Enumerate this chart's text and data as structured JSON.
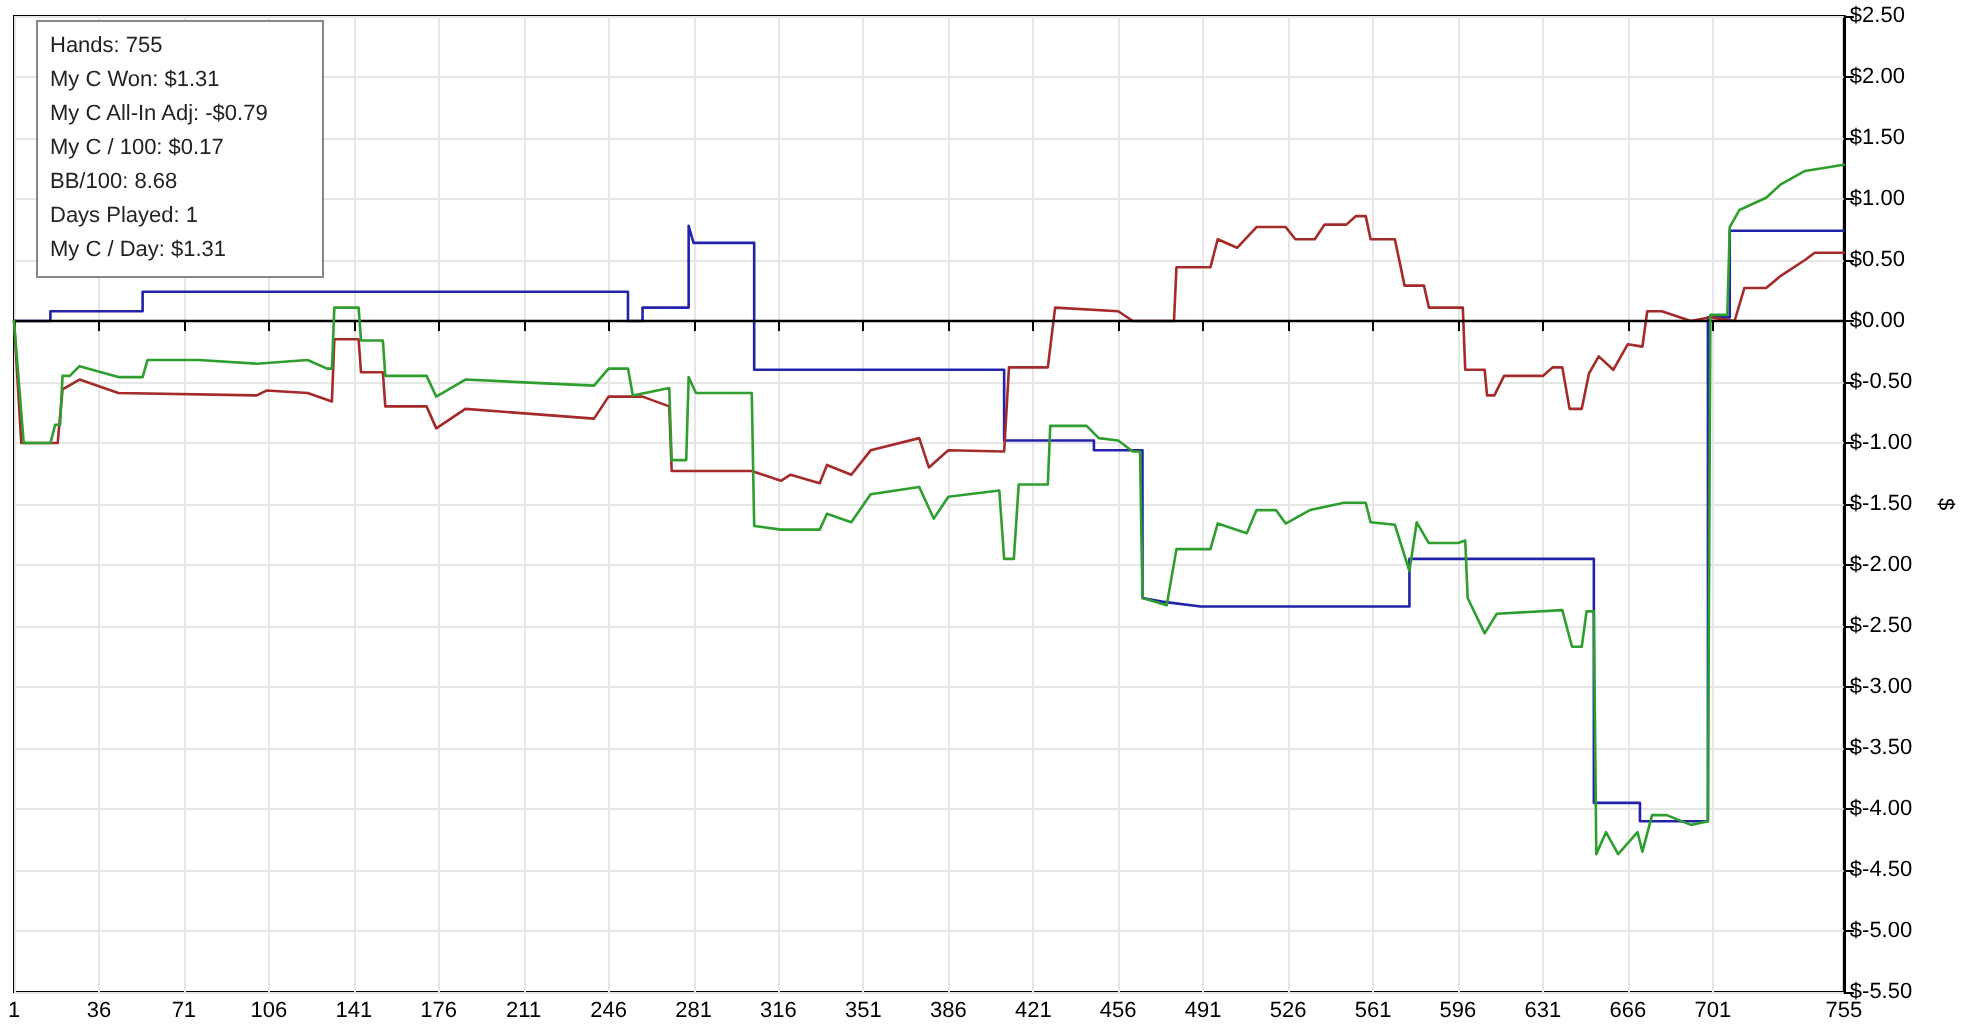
{
  "chart_data": {
    "type": "line",
    "ylabel": "$",
    "annotations": [
      "Hands: 755",
      "My C Won: $1.31",
      "My C All-In Adj: -$0.79",
      "My C / 100: $0.17",
      "BB/100: 8.68",
      "Days Played: 1",
      "My C / Day: $1.31"
    ],
    "xlim": [
      1,
      755
    ],
    "xticks": [
      1,
      36,
      71,
      106,
      141,
      176,
      211,
      246,
      281,
      316,
      351,
      386,
      421,
      456,
      491,
      526,
      561,
      596,
      631,
      666,
      701,
      755
    ],
    "ylim": [
      -5.5,
      2.5
    ],
    "yticks": [
      {
        "value": 2.5,
        "label": "$2.50"
      },
      {
        "value": 2,
        "label": "$2.00"
      },
      {
        "value": 1.5,
        "label": "$1.50"
      },
      {
        "value": 1,
        "label": "$1.00"
      },
      {
        "value": 0.5,
        "label": "$0.50"
      },
      {
        "value": 0,
        "label": "$0.00"
      },
      {
        "value": -0.5,
        "label": "$-0.50"
      },
      {
        "value": -1,
        "label": "$-1.00"
      },
      {
        "value": -1.5,
        "label": "$-1.50"
      },
      {
        "value": -2,
        "label": "$-2.00"
      },
      {
        "value": -2.5,
        "label": "$-2.50"
      },
      {
        "value": -3,
        "label": "$-3.00"
      },
      {
        "value": -3.5,
        "label": "$-3.50"
      },
      {
        "value": -4,
        "label": "$-4.00"
      },
      {
        "value": -4.5,
        "label": "$-4.50"
      },
      {
        "value": -5,
        "label": "$-5.00"
      },
      {
        "value": -5.5,
        "label": "$-5.50"
      }
    ],
    "grid": true,
    "marker": "none",
    "line_style": "solid",
    "ref_lines": [
      {
        "axis": "y",
        "value": 0,
        "color": "#000000"
      }
    ],
    "series": [
      {
        "color": "#2222aa",
        "x": [
          1,
          16,
          16,
          54,
          54,
          254,
          254,
          260,
          260,
          279,
          279,
          281,
          306,
          306,
          409,
          409,
          446,
          446,
          466,
          466,
          474,
          490,
          576,
          576,
          652,
          652,
          671,
          671,
          699,
          699,
          708,
          708,
          755
        ],
        "values": [
          0,
          0,
          0.08,
          0.08,
          0.24,
          0.24,
          0,
          0,
          0.11,
          0.11,
          0.78,
          0.64,
          0.64,
          -0.4,
          -0.4,
          -0.98,
          -0.98,
          -1.06,
          -1.06,
          -2.27,
          -2.3,
          -2.34,
          -2.34,
          -1.95,
          -1.95,
          -3.95,
          -3.95,
          -4.1,
          -4.1,
          0.03,
          0.03,
          0.74,
          0.74
        ]
      },
      {
        "color": "#a52a2a",
        "x": [
          1,
          4,
          19,
          21,
          28,
          44,
          101,
          105,
          122,
          132,
          133,
          143,
          144,
          153,
          154,
          171,
          175,
          187,
          240,
          246,
          260,
          271,
          272,
          305,
          317,
          321,
          333,
          336,
          346,
          354,
          374,
          378,
          386,
          409,
          411,
          427,
          430,
          456,
          462,
          479,
          480,
          494,
          497,
          505,
          513,
          525,
          529,
          537,
          541,
          550,
          554,
          558,
          560,
          570,
          574,
          582,
          584,
          598,
          599,
          607,
          608,
          611,
          615,
          631,
          635,
          639,
          642,
          647,
          650,
          654,
          660,
          666,
          672,
          674,
          680,
          692,
          700,
          710,
          714,
          723,
          729,
          739,
          743,
          755
        ],
        "values": [
          0,
          -1,
          -1,
          -0.56,
          -0.48,
          -0.59,
          -0.61,
          -0.57,
          -0.59,
          -0.66,
          -0.15,
          -0.15,
          -0.42,
          -0.42,
          -0.7,
          -0.7,
          -0.88,
          -0.72,
          -0.8,
          -0.62,
          -0.62,
          -0.7,
          -1.23,
          -1.23,
          -1.31,
          -1.26,
          -1.33,
          -1.18,
          -1.26,
          -1.06,
          -0.96,
          -1.2,
          -1.06,
          -1.07,
          -0.38,
          -0.38,
          0.11,
          0.08,
          0,
          0,
          0.44,
          0.44,
          0.67,
          0.6,
          0.77,
          0.77,
          0.67,
          0.67,
          0.79,
          0.79,
          0.86,
          0.86,
          0.67,
          0.67,
          0.29,
          0.29,
          0.11,
          0.11,
          -0.4,
          -0.4,
          -0.61,
          -0.61,
          -0.45,
          -0.45,
          -0.38,
          -0.38,
          -0.72,
          -0.72,
          -0.43,
          -0.29,
          -0.4,
          -0.19,
          -0.21,
          0.08,
          0.08,
          0,
          0.03,
          0,
          0.27,
          0.27,
          0.37,
          0.5,
          0.56,
          0.56
        ]
      },
      {
        "color": "#2e9e2e",
        "x": [
          1,
          5,
          16,
          18,
          20,
          21,
          24,
          28,
          44,
          54,
          56,
          77,
          101,
          122,
          130,
          132,
          133,
          143,
          144,
          153,
          154,
          171,
          175,
          187,
          240,
          246,
          254,
          256,
          271,
          272,
          278,
          279,
          282,
          305,
          306,
          317,
          333,
          336,
          346,
          354,
          374,
          380,
          386,
          407,
          409,
          413,
          415,
          427,
          428,
          443,
          448,
          456,
          462,
          465,
          466,
          476,
          480,
          494,
          497,
          509,
          513,
          521,
          525,
          535,
          549,
          558,
          560,
          570,
          576,
          579,
          584,
          596,
          599,
          600,
          607,
          612,
          639,
          643,
          647,
          649,
          652,
          653,
          657,
          662,
          670,
          672,
          676,
          682,
          692,
          699,
          700,
          707,
          708,
          712,
          723,
          729,
          739,
          755
        ],
        "values": [
          0,
          -1,
          -1,
          -0.85,
          -0.85,
          -0.45,
          -0.45,
          -0.37,
          -0.46,
          -0.46,
          -0.32,
          -0.32,
          -0.35,
          -0.32,
          -0.39,
          -0.39,
          0.11,
          0.11,
          -0.16,
          -0.16,
          -0.45,
          -0.45,
          -0.62,
          -0.48,
          -0.53,
          -0.39,
          -0.39,
          -0.61,
          -0.55,
          -1.14,
          -1.14,
          -0.46,
          -0.59,
          -0.59,
          -1.68,
          -1.71,
          -1.71,
          -1.58,
          -1.65,
          -1.42,
          -1.36,
          -1.62,
          -1.44,
          -1.39,
          -1.95,
          -1.95,
          -1.34,
          -1.34,
          -0.86,
          -0.86,
          -0.96,
          -0.98,
          -1.07,
          -1.07,
          -2.27,
          -2.33,
          -1.87,
          -1.87,
          -1.66,
          -1.74,
          -1.55,
          -1.55,
          -1.66,
          -1.55,
          -1.49,
          -1.49,
          -1.65,
          -1.67,
          -2.05,
          -1.65,
          -1.82,
          -1.82,
          -1.8,
          -2.27,
          -2.56,
          -2.4,
          -2.37,
          -2.67,
          -2.67,
          -2.38,
          -2.38,
          -4.37,
          -4.19,
          -4.37,
          -4.19,
          -4.35,
          -4.05,
          -4.05,
          -4.13,
          -4.1,
          0.05,
          0.05,
          0.77,
          0.91,
          1.01,
          1.12,
          1.23,
          1.28
        ]
      }
    ]
  }
}
